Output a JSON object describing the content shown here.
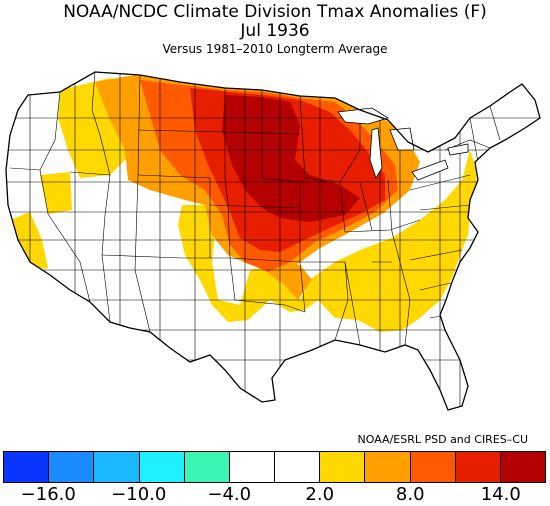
{
  "header": {
    "title": "NOAA/NCDC Climate Division Tmax Anomalies (F)",
    "period": "Jul 1936",
    "subtitle": "Versus 1981–2010 Longterm Average"
  },
  "credit": "NOAA/ESRL PSD and CIRES–CU",
  "legend": {
    "colors": [
      "#0a35ff",
      "#1a8cff",
      "#1ab8ff",
      "#1ef0ff",
      "#3cf5b4",
      "#ffffff",
      "#ffffff",
      "#ffd800",
      "#ff9f00",
      "#ff5a00",
      "#e81e00",
      "#b40000"
    ],
    "ticks": [
      "−16.0",
      "−10.0",
      "−4.0",
      "2.0",
      "8.0",
      "14.0"
    ]
  },
  "map_colors": {
    "neutral": "#ffffff",
    "yellow": "#ffd800",
    "orange": "#ff9f00",
    "dark_orange": "#ff5a00",
    "red": "#e81e00",
    "dark_red": "#b40000",
    "lines": "#000000"
  }
}
